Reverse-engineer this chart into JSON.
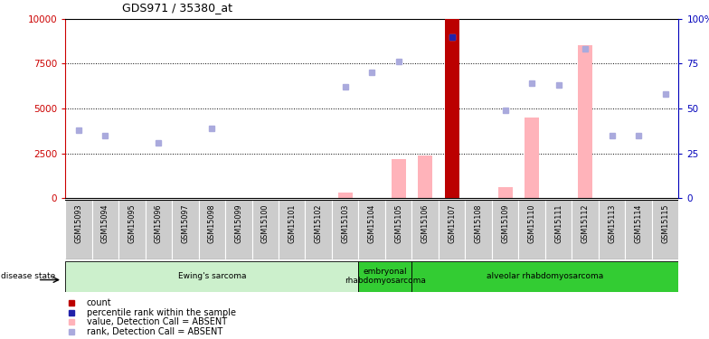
{
  "title": "GDS971 / 35380_at",
  "samples": [
    "GSM15093",
    "GSM15094",
    "GSM15095",
    "GSM15096",
    "GSM15097",
    "GSM15098",
    "GSM15099",
    "GSM15100",
    "GSM15101",
    "GSM15102",
    "GSM15103",
    "GSM15104",
    "GSM15105",
    "GSM15106",
    "GSM15107",
    "GSM15108",
    "GSM15109",
    "GSM15110",
    "GSM15111",
    "GSM15112",
    "GSM15113",
    "GSM15114",
    "GSM15115"
  ],
  "value_bars": [
    null,
    null,
    null,
    null,
    null,
    null,
    null,
    null,
    null,
    null,
    null,
    null,
    2200,
    2400,
    10000,
    null,
    600,
    4500,
    null,
    8500,
    null,
    null,
    null
  ],
  "count_bar_index": 14,
  "count_bar_value": 10000,
  "rank_dots": [
    null,
    null,
    null,
    null,
    null,
    null,
    null,
    null,
    null,
    null,
    null,
    null,
    null,
    null,
    null,
    null,
    null,
    null,
    null,
    null,
    null,
    null,
    null
  ],
  "percentile_dots_right": [
    null,
    35,
    null,
    null,
    null,
    null,
    null,
    null,
    null,
    null,
    62,
    70,
    76,
    null,
    90,
    null,
    49,
    64,
    63,
    83,
    35,
    35,
    58
  ],
  "rank_dots_left": [
    3800,
    null,
    null,
    3100,
    null,
    3900,
    null,
    null,
    null,
    null,
    null,
    null,
    null,
    null,
    null,
    null,
    null,
    null,
    null,
    null,
    null,
    null,
    null
  ],
  "small_bars": [
    null,
    null,
    null,
    null,
    null,
    null,
    null,
    null,
    null,
    null,
    300,
    null,
    null,
    null,
    null,
    null,
    null,
    null,
    null,
    null,
    null,
    null,
    null
  ],
  "disease_groups": [
    {
      "label": "Ewing's sarcoma",
      "start": 0,
      "end": 11,
      "light": true
    },
    {
      "label": "embryonal\nrhabdomyosarcoma",
      "start": 11,
      "end": 13,
      "light": false
    },
    {
      "label": "alveolar rhabdomyosarcoma",
      "start": 13,
      "end": 23,
      "light": false
    }
  ],
  "ylim_left": [
    0,
    10000
  ],
  "ylim_right": [
    0,
    100
  ],
  "yticks_left": [
    0,
    2500,
    5000,
    7500,
    10000
  ],
  "yticks_right": [
    0,
    25,
    50,
    75,
    100
  ],
  "left_tick_labels": [
    "0",
    "2500",
    "5000",
    "7500",
    "10000"
  ],
  "right_tick_labels": [
    "0",
    "25",
    "50",
    "75",
    "100%"
  ],
  "left_color": "#cc0000",
  "right_color": "#0000bb",
  "bar_color_value": "#ffb3ba",
  "bar_color_count": "#bb0000",
  "dot_color_rank": "#aaaadd",
  "dot_color_percentile": "#2222aa",
  "dot_color_small": "#ffb3ba",
  "legend_items": [
    {
      "color": "#bb0000",
      "label": "count"
    },
    {
      "color": "#2222aa",
      "label": "percentile rank within the sample"
    },
    {
      "color": "#ffb3ba",
      "label": "value, Detection Call = ABSENT"
    },
    {
      "color": "#aaaadd",
      "label": "rank, Detection Call = ABSENT"
    }
  ],
  "grid_dotted_vals": [
    2500,
    5000,
    7500
  ],
  "light_green": "#ccf0cc",
  "dark_green": "#33cc33",
  "gray_bg": "#cccccc",
  "white": "#ffffff"
}
